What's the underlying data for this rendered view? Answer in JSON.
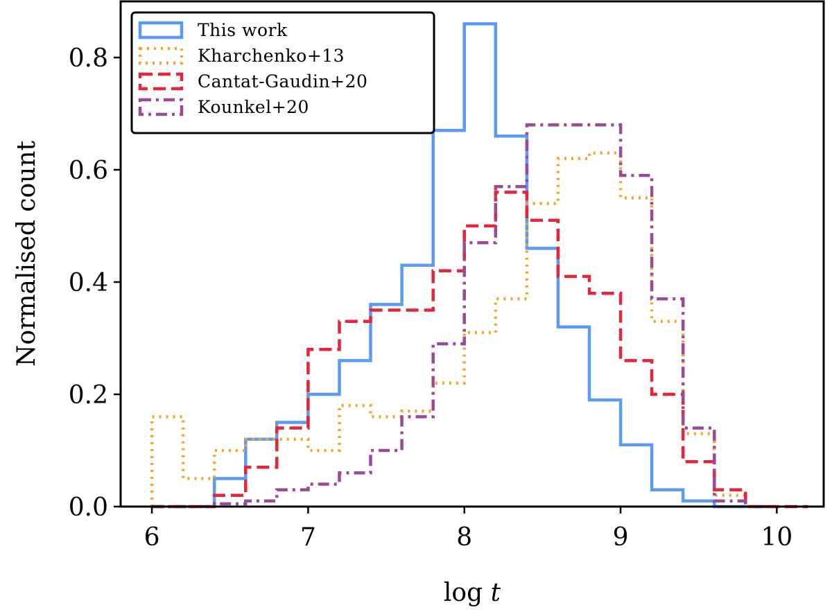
{
  "chart_data": {
    "type": "histogram-step",
    "title": "",
    "xlabel": "log",
    "xlabel_var": "t",
    "ylabel": "Normalised count",
    "xlim": [
      5.8,
      10.3
    ],
    "ylim": [
      0.0,
      0.9
    ],
    "xticks": [
      6,
      7,
      8,
      9,
      10
    ],
    "yticks": [
      0.0,
      0.2,
      0.4,
      0.6,
      0.8
    ],
    "xtick_labels": [
      "6",
      "7",
      "8",
      "9",
      "10"
    ],
    "ytick_labels": [
      "0.0",
      "0.2",
      "0.4",
      "0.6",
      "0.8"
    ],
    "legend_position": "top-left",
    "series": [
      {
        "name": "This work",
        "color": "#5b9af5",
        "dash": "solid",
        "edges": [
          6.4,
          6.6,
          6.8,
          7.0,
          7.2,
          7.4,
          7.6,
          7.8,
          8.0,
          8.2,
          8.4,
          8.6,
          8.8,
          9.0,
          9.2,
          9.4,
          9.6,
          9.8
        ],
        "values": [
          0.05,
          0.12,
          0.15,
          0.2,
          0.26,
          0.36,
          0.43,
          0.67,
          0.86,
          0.66,
          0.46,
          0.32,
          0.19,
          0.11,
          0.03,
          0.01,
          0.0
        ]
      },
      {
        "name": "Kharchenko+13",
        "color": "#f4a62a",
        "dash": "dotted",
        "edges": [
          6.0,
          6.2,
          6.4,
          6.6,
          6.8,
          7.0,
          7.2,
          7.4,
          7.6,
          7.8,
          8.0,
          8.2,
          8.4,
          8.6,
          8.8,
          9.0,
          9.2,
          9.4,
          9.6,
          9.8,
          10.0
        ],
        "values": [
          0.16,
          0.05,
          0.1,
          0.12,
          0.12,
          0.1,
          0.18,
          0.16,
          0.17,
          0.22,
          0.31,
          0.37,
          0.54,
          0.62,
          0.63,
          0.55,
          0.33,
          0.13,
          0.02,
          0.0
        ]
      },
      {
        "name": "Cantat-Gaudin+20",
        "color": "#e3263a",
        "dash": "dashed",
        "edges": [
          6.0,
          6.2,
          6.4,
          6.6,
          6.8,
          7.0,
          7.2,
          7.4,
          7.6,
          7.8,
          8.0,
          8.2,
          8.4,
          8.6,
          8.8,
          9.0,
          9.2,
          9.4,
          9.6,
          9.8,
          10.0,
          10.2
        ],
        "values": [
          0.0,
          0.0,
          0.02,
          0.07,
          0.14,
          0.28,
          0.33,
          0.35,
          0.35,
          0.42,
          0.5,
          0.56,
          0.51,
          0.41,
          0.38,
          0.26,
          0.2,
          0.08,
          0.03,
          0.0,
          0.0
        ]
      },
      {
        "name": "Kounkel+20",
        "color": "#9b4a96",
        "dash": "dashdot",
        "edges": [
          6.0,
          6.2,
          6.4,
          6.6,
          6.8,
          7.0,
          7.2,
          7.4,
          7.6,
          7.8,
          8.0,
          8.2,
          8.4,
          8.6,
          8.8,
          9.0,
          9.2,
          9.4,
          9.6,
          9.8,
          10.0
        ],
        "values": [
          0.0,
          0.0,
          0.005,
          0.01,
          0.03,
          0.04,
          0.06,
          0.1,
          0.16,
          0.29,
          0.47,
          0.57,
          0.68,
          0.68,
          0.68,
          0.59,
          0.37,
          0.14,
          0.01,
          0.0
        ]
      }
    ]
  }
}
